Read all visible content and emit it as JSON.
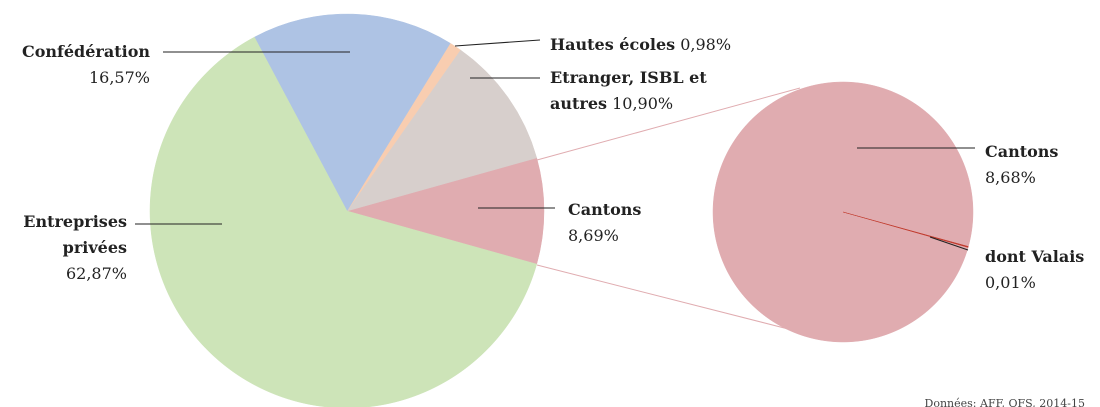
{
  "chart_data": [
    {
      "type": "pie",
      "categories": [
        "Cantons",
        "Etranger, ISBL et autres",
        "Hautes écoles",
        "Confédération",
        "Entreprises privées"
      ],
      "values": [
        8.69,
        10.9,
        0.98,
        16.57,
        62.87
      ],
      "value_labels": [
        "8,69%",
        "10,90%",
        "0,98%",
        "16,57%",
        "62,87%"
      ],
      "colors": [
        "#e0acb0",
        "#d7cfcc",
        "#f8cdb0",
        "#aec3e4",
        "#cde4b8"
      ]
    },
    {
      "type": "pie",
      "categories": [
        "Cantons",
        "dont Valais"
      ],
      "values": [
        8.68,
        0.01
      ],
      "value_labels": [
        "8,68%",
        "0,01%"
      ],
      "colors": [
        "#e0acb0",
        "#c0392b"
      ]
    }
  ],
  "source": "Données: AFF, OFS, 2014-15"
}
